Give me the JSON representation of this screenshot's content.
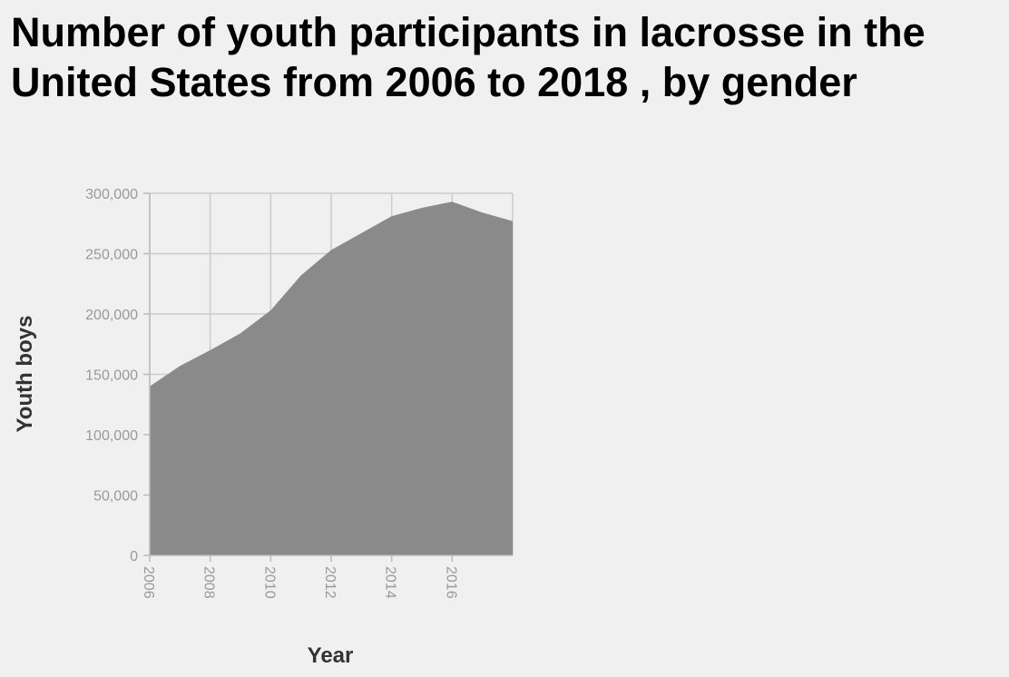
{
  "chart_data": {
    "type": "area",
    "title": "Number of youth participants in lacrosse in the United States from 2006 to 2018 , by gender",
    "xlabel": "Year",
    "ylabel": "Youth boys",
    "x": [
      2006,
      2007,
      2008,
      2009,
      2010,
      2011,
      2012,
      2013,
      2014,
      2015,
      2016,
      2017,
      2018
    ],
    "series": [
      {
        "values": [
          140000,
          157000,
          170000,
          184000,
          203000,
          232000,
          253000,
          267000,
          281000,
          288000,
          293000,
          284000,
          277000
        ]
      }
    ],
    "xlim": [
      2006,
      2018
    ],
    "ylim": [
      0,
      300000
    ],
    "x_ticks": [
      "2006",
      "2008",
      "2010",
      "2012",
      "2014",
      "2016"
    ],
    "y_ticks": [
      "0",
      "50,000",
      "100,000",
      "150,000",
      "200,000",
      "250,000",
      "300,000"
    ],
    "grid": true,
    "colors": {
      "fill": "#8a8a8a",
      "grid": "#cccccc",
      "background": "#f0f0f0"
    }
  }
}
